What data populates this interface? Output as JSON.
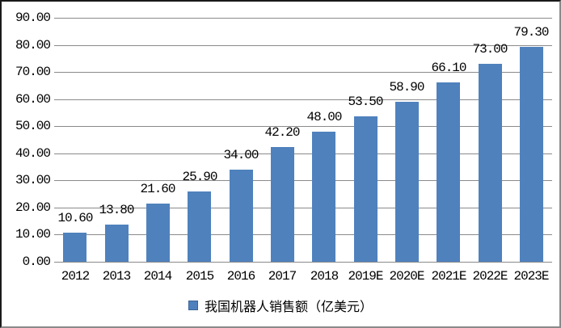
{
  "chart_data": {
    "type": "bar",
    "title": "",
    "xlabel": "",
    "ylabel": "",
    "categories": [
      "2012",
      "2013",
      "2014",
      "2015",
      "2016",
      "2017",
      "2018",
      "2019E",
      "2020E",
      "2021E",
      "2022E",
      "2023E"
    ],
    "values": [
      10.6,
      13.8,
      21.6,
      25.9,
      34.0,
      42.2,
      48.0,
      53.5,
      58.9,
      66.1,
      73.0,
      79.3
    ],
    "data_labels": [
      "10.60",
      "13.80",
      "21.60",
      "25.90",
      "34.00",
      "42.20",
      "48.00",
      "53.50",
      "58.90",
      "66.10",
      "73.00",
      "79.30"
    ],
    "ylim": [
      0,
      90
    ],
    "ytick_step": 10,
    "yticks": [
      "0.00",
      "10.00",
      "20.00",
      "30.00",
      "40.00",
      "50.00",
      "60.00",
      "70.00",
      "80.00",
      "90.00"
    ],
    "grid": true,
    "legend": {
      "label": "我国机器人销售额（亿美元）",
      "position": "bottom"
    },
    "colors": {
      "bar": "#4F81BD",
      "gridline": "#8a8a8a",
      "text": "#000000",
      "background": "#ffffff"
    }
  }
}
